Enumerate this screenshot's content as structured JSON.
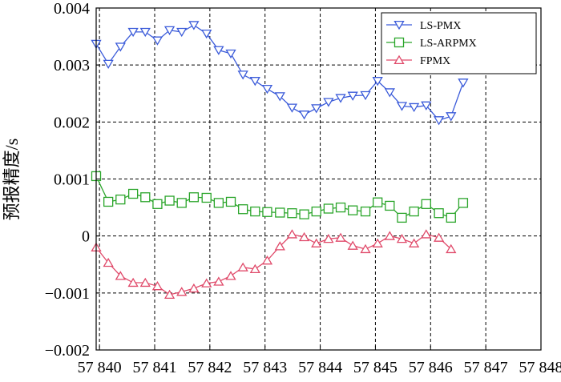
{
  "chart_data": {
    "type": "line",
    "title": "",
    "xlabel": "",
    "ylabel": "预报精度/s",
    "xlim": [
      57839.94,
      57848
    ],
    "ylim": [
      -0.002,
      0.004
    ],
    "xticks": [
      57840,
      57841,
      57842,
      57843,
      57844,
      57845,
      57846,
      57847,
      57848
    ],
    "xtick_labels": [
      "57 840",
      "57 841",
      "57 842",
      "57 843",
      "57 844",
      "57 845",
      "57 846",
      "57 847",
      "57 848"
    ],
    "yticks": [
      -0.002,
      -0.001,
      0,
      0.001,
      0.002,
      0.003,
      0.004
    ],
    "ytick_labels": [
      "-0.002",
      "-0.001",
      "0",
      "0.001",
      "0.002",
      "0.003",
      "0.004"
    ],
    "grid": true,
    "legend_position": "top-right",
    "x": [
      57839.94,
      57840.16,
      57840.38,
      57840.61,
      57840.83,
      57841.05,
      57841.27,
      57841.49,
      57841.71,
      57841.94,
      57842.16,
      57842.38,
      57842.6,
      57842.82,
      57843.04,
      57843.27,
      57843.49,
      57843.71,
      57843.93,
      57844.15,
      57844.37,
      57844.59,
      57844.82,
      57845.04,
      57845.26,
      57845.48,
      57845.7,
      57845.92,
      57846.15,
      57846.37,
      57846.59,
      57846.81,
      57847.03,
      57847.25
    ],
    "series": [
      {
        "name": "LS-PMX",
        "color": "#3b5bd9",
        "marker": "triangle-down",
        "values": [
          0.00337,
          0.00302,
          0.00332,
          0.00358,
          0.00358,
          0.00343,
          0.00361,
          0.00358,
          0.0037,
          0.00355,
          0.00326,
          0.0032,
          0.00283,
          0.00272,
          0.00258,
          0.00245,
          0.00225,
          0.00213,
          0.00224,
          0.00235,
          0.00242,
          0.00246,
          0.00247,
          0.00272,
          0.00252,
          0.00228,
          0.00226,
          0.00229,
          0.00203,
          0.0021,
          0.00269,
          null,
          null,
          null
        ]
      },
      {
        "name": "LS-ARPMX",
        "color": "#2aa52a",
        "marker": "square",
        "values": [
          0.00105,
          0.0006,
          0.00064,
          0.00074,
          0.00068,
          0.00056,
          0.00062,
          0.00058,
          0.00068,
          0.00067,
          0.00058,
          0.0006,
          0.00047,
          0.00043,
          0.00042,
          0.00041,
          0.0004,
          0.00038,
          0.00043,
          0.00048,
          0.0005,
          0.00045,
          0.00043,
          0.00059,
          0.00053,
          0.00032,
          0.00043,
          0.00056,
          0.0004,
          0.00032,
          0.00058,
          null,
          null,
          null
        ]
      },
      {
        "name": "FPMX",
        "color": "#e04a6a",
        "marker": "triangle-up",
        "values": [
          -0.0002,
          -0.00047,
          -0.0007,
          -0.00082,
          -0.00082,
          -0.00088,
          -0.00103,
          -0.00098,
          -0.00092,
          -0.00083,
          -0.0008,
          -0.0007,
          -0.00055,
          -0.00058,
          -0.00043,
          -0.00018,
          3e-05,
          -2e-05,
          -0.00013,
          -5e-05,
          -3e-05,
          -0.00017,
          -0.00023,
          -0.00013,
          0.0,
          -5e-05,
          -0.00013,
          3e-05,
          -3e-05,
          -0.00023,
          null,
          null,
          null,
          null
        ]
      }
    ]
  }
}
